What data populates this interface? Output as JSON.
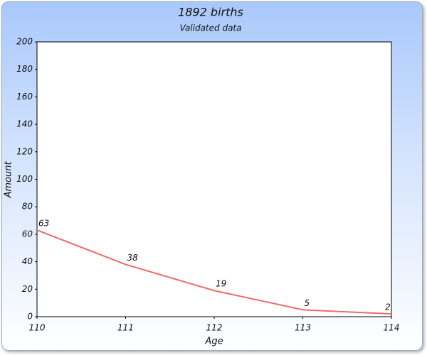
{
  "chart_data": {
    "type": "line",
    "title": "1892 births",
    "subtitle": "Validated data",
    "x_label": "Age",
    "y_label": "Amount",
    "x": [
      110,
      111,
      112,
      113,
      114
    ],
    "values": [
      63,
      38,
      19,
      5,
      2
    ],
    "color": "#f06a6a",
    "xlim": [
      110,
      114
    ],
    "xticks": [
      110,
      111,
      112,
      113,
      114
    ],
    "ylim": [
      0,
      200
    ],
    "yticks": [
      0,
      20,
      40,
      60,
      80,
      100,
      120,
      140,
      160,
      180,
      200
    ],
    "data_labels": true,
    "grid": false
  }
}
